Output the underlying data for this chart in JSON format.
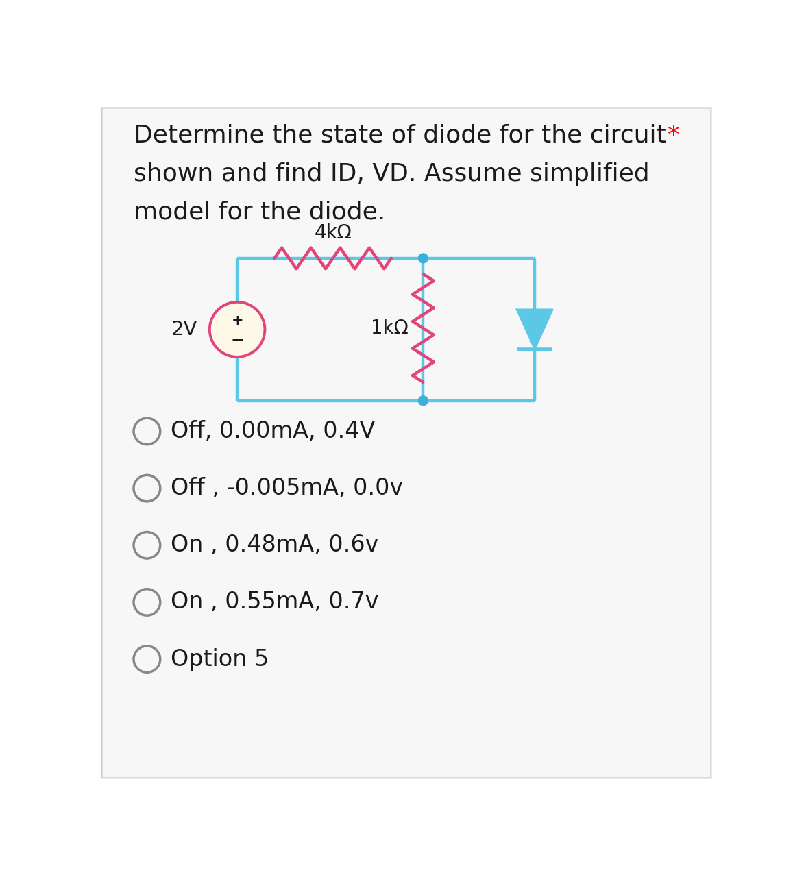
{
  "title_line1": "Determine the state of diode for the circuit",
  "title_star": "*",
  "title_line2": "shown and find ID, VD. Assume simplified",
  "title_line3": "model for the diode.",
  "options": [
    "Off, 0.00mA, 0.4V",
    "Off , -0.005mA, 0.0v",
    "On , 0.48mA, 0.6v",
    "On , 0.55mA, 0.7v",
    "Option 5"
  ],
  "circuit_wire_color": "#5bc8e8",
  "circuit_resistor_color": "#e0457b",
  "circuit_dot_color": "#3ab0d8",
  "circuit_diode_color": "#5bc8e8",
  "voltage_circle_color": "#e0457b",
  "voltage_fill_color": "#fdf8e8",
  "label_4kOhm": "4kΩ",
  "label_1kOhm": "1kΩ",
  "label_2V": "2V",
  "bg_color": "#ffffff",
  "card_color": "#f7f7f7",
  "option_circle_color": "#888888",
  "text_color": "#1a1a1a",
  "title_fontsize": 26,
  "option_fontsize": 24
}
